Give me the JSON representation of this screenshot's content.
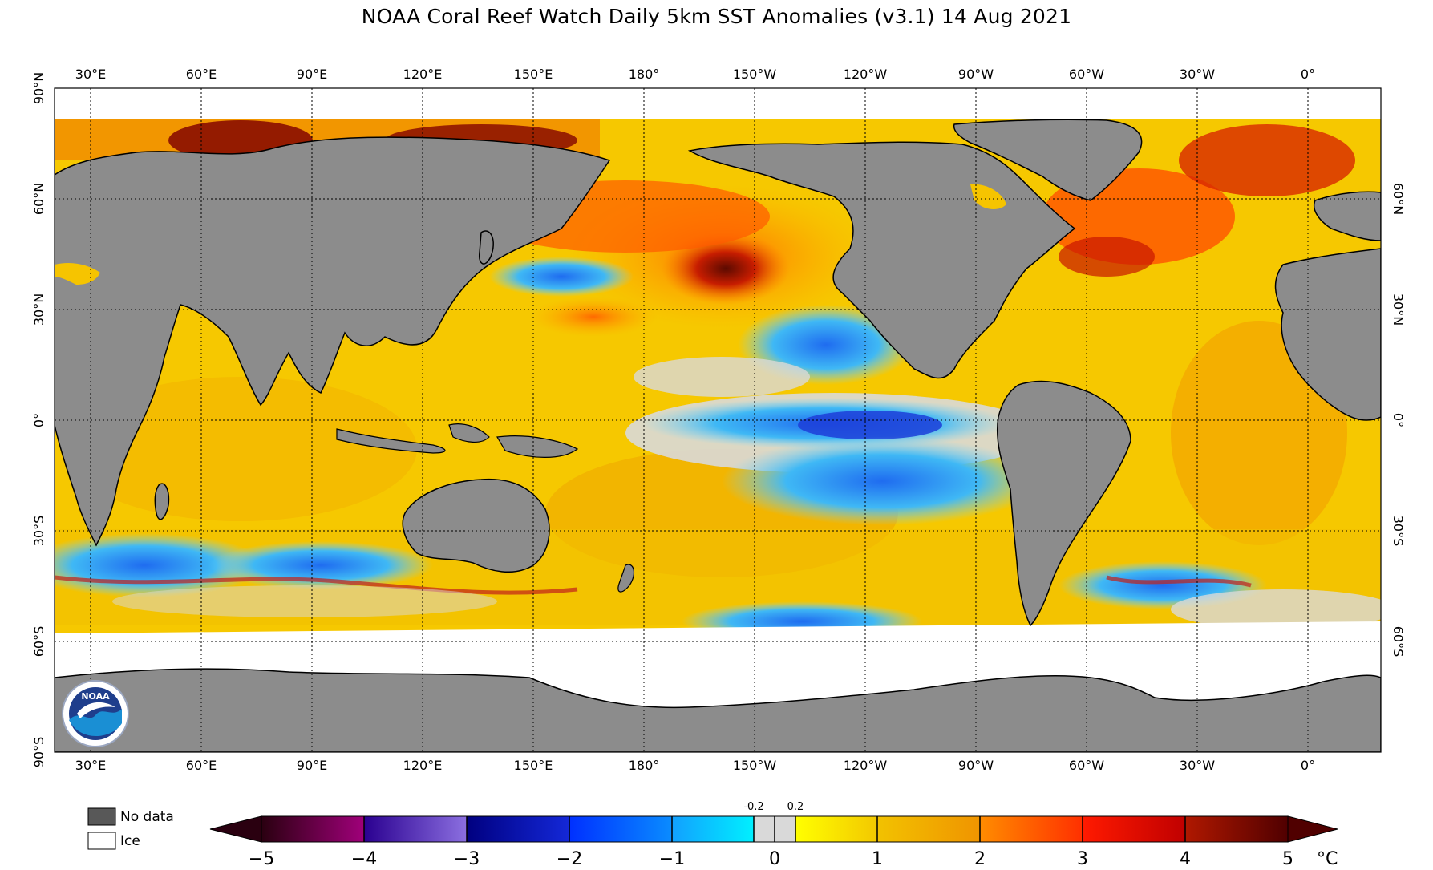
{
  "title": "NOAA Coral Reef Watch Daily 5km SST Anomalies  (v3.1)   14 Aug 2021",
  "top_lon_labels": [
    "30°E",
    "60°E",
    "90°E",
    "120°E",
    "150°E",
    "180°",
    "150°W",
    "120°W",
    "90°W",
    "60°W",
    "30°W",
    "0°"
  ],
  "bottom_lon_labels": [
    "30°E",
    "60°E",
    "90°E",
    "120°E",
    "150°E",
    "180°",
    "150°W",
    "120°W",
    "90°W",
    "60°W",
    "30°W",
    "0°"
  ],
  "left_lat_labels": [
    "90°N",
    "60°N",
    "30°N",
    "0°",
    "30°S",
    "60°S",
    "90°S"
  ],
  "right_lat_labels": [
    "60°N",
    "30°N",
    "0°",
    "30°S",
    "60°S"
  ],
  "legend": {
    "no_data": "No data",
    "ice": "Ice"
  },
  "colorbar": {
    "ticks": [
      "−5",
      "−4",
      "−3",
      "−2",
      "−1",
      "0",
      "1",
      "2",
      "3",
      "4",
      "5"
    ],
    "small_labels": [
      "-0.2",
      "0.2"
    ],
    "unit": "°C"
  },
  "colors": {
    "land": "#8c8c8c",
    "ice": "#ffffff",
    "no_data": "#585858",
    "neutral": "#d9d9d9",
    "warm": "#f6c400",
    "hot": "#e83a05",
    "cool": "#39b4f2",
    "cold": "#1b3fd9"
  },
  "logo": {
    "text": "NOAA"
  }
}
